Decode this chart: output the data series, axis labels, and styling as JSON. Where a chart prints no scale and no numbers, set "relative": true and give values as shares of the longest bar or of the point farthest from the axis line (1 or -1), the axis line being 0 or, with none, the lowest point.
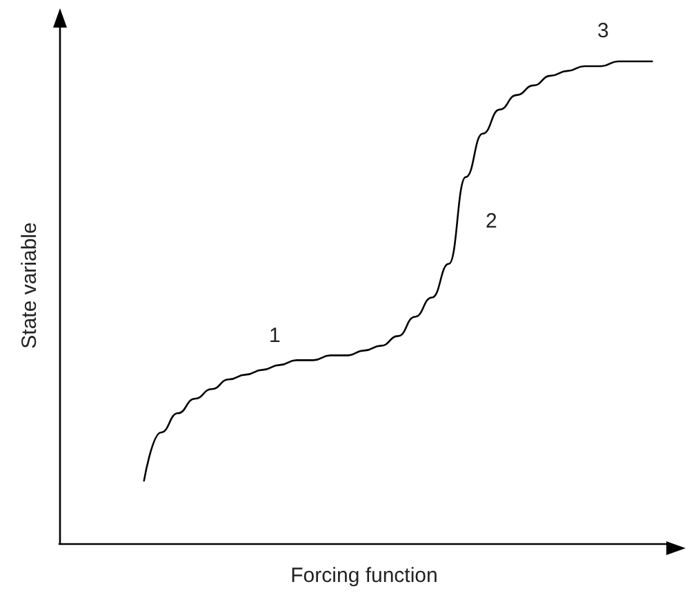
{
  "chart_data": {
    "type": "line",
    "relative": true,
    "xlabel": "Forcing function",
    "ylabel": "State variable",
    "annotations": [
      "1",
      "2",
      "3"
    ],
    "categories": [
      null,
      null,
      null,
      null,
      null,
      null,
      null,
      null,
      null,
      null,
      null,
      null,
      null,
      null,
      null,
      null,
      null,
      null,
      null,
      null,
      null,
      null,
      null,
      null,
      null,
      null,
      null,
      null,
      null,
      null,
      null,
      null,
      null,
      null,
      null,
      null,
      null
    ],
    "series": [
      {
        "color": "#000000",
        "values": [
          null,
          null,
          null,
          null,
          null,
          0.13,
          0.23,
          0.27,
          0.3,
          0.32,
          0.34,
          0.35,
          0.36,
          0.37,
          0.38,
          0.38,
          0.39,
          0.39,
          0.4,
          0.41,
          0.43,
          0.47,
          0.51,
          0.58,
          0.76,
          0.85,
          0.9,
          0.93,
          0.95,
          0.97,
          0.98,
          0.99,
          0.99,
          1.0,
          1.0,
          1.0,
          null
        ]
      }
    ]
  }
}
